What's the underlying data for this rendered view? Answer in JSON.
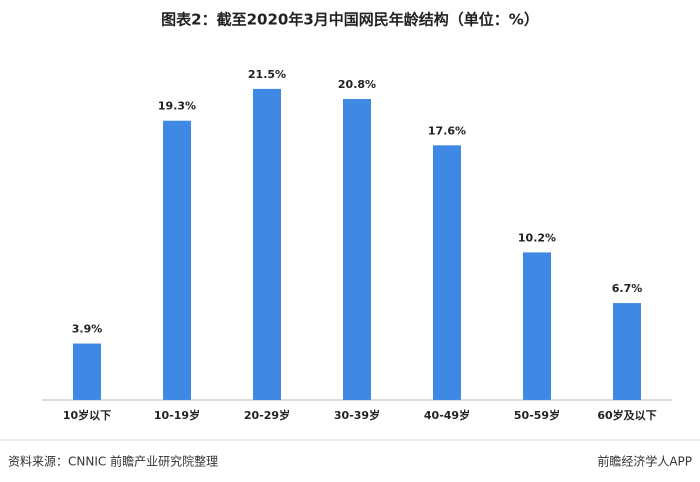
{
  "chart_data": {
    "type": "bar",
    "title": "图表2：截至2020年3月中国网民年龄结构（单位：%）",
    "categories": [
      "10岁以下",
      "10-19岁",
      "20-29岁",
      "30-39岁",
      "40-49岁",
      "50-59岁",
      "60岁及以下"
    ],
    "values": [
      3.9,
      19.3,
      21.5,
      20.8,
      17.6,
      10.2,
      6.7
    ],
    "value_labels": [
      "3.9%",
      "19.3%",
      "21.5%",
      "20.8%",
      "17.6%",
      "10.2%",
      "6.7%"
    ],
    "color": "#3f88e3",
    "source": "资料来源：CNNIC  前瞻产业研究院整理",
    "brand": "前瞻经济学人APP"
  }
}
